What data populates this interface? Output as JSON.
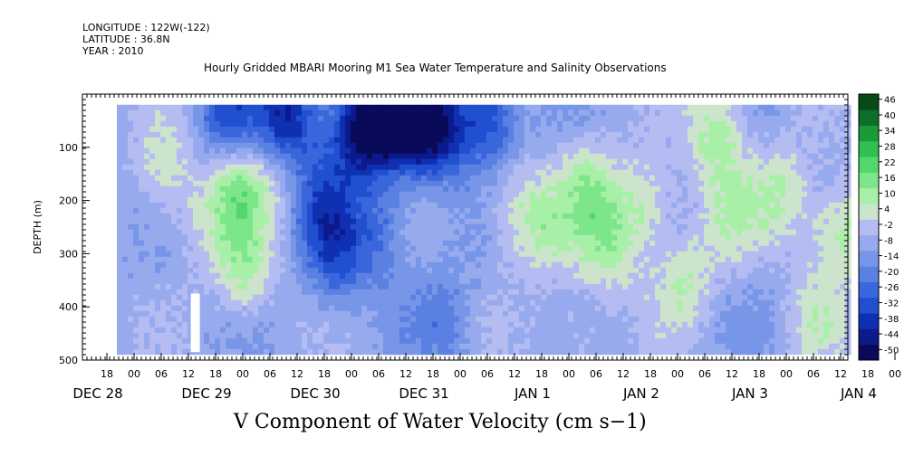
{
  "header": {
    "longitude": "LONGITUDE : 122W(-122)",
    "latitude": "LATITUDE : 36.8N",
    "year": "YEAR : 2010"
  },
  "colors": {
    "page_background": "#ffffff",
    "missing_data": "#ffffff",
    "axis": "#000000"
  },
  "chart_data": {
    "type": "heatmap",
    "title": "Hourly Gridded MBARI Mooring M1 Sea Water Temperature and Salinity Observations",
    "xlabel": "V Component of Water Velocity (cm s−1)",
    "ylabel": "DEPTH (m)",
    "ylim": [
      500,
      0
    ],
    "y_inverted": true,
    "yticks": [
      100,
      200,
      300,
      400,
      500
    ],
    "x_hour_ticks": [
      "18",
      "00",
      "06",
      "12",
      "18",
      "00",
      "06",
      "12",
      "18",
      "00",
      "06",
      "12",
      "18",
      "00",
      "06",
      "12",
      "18",
      "00",
      "06",
      "12",
      "18",
      "00",
      "06",
      "12",
      "18",
      "00",
      "06",
      "12",
      "18",
      "00",
      "06",
      "12",
      "18",
      "00",
      "06",
      "12",
      "12"
    ],
    "x_day_labels": [
      "DEC 28",
      "DEC 29",
      "DEC 30",
      "DEC 31",
      "JAN  1",
      "JAN  2",
      "JAN  3",
      "JAN  4"
    ],
    "data_extent": {
      "depth_top_m": 20,
      "depth_bottom_m": 485
    },
    "colorbar": {
      "levels": [
        -50,
        -44,
        -38,
        -32,
        -26,
        -20,
        -14,
        -8,
        -2,
        4,
        10,
        16,
        22,
        28,
        34,
        40,
        46
      ],
      "tick_labels": [
        "-50",
        "-44",
        "-38",
        "-32",
        "-26",
        "-20",
        "-14",
        "-8",
        "-2",
        "4",
        "10",
        "16",
        "22",
        "28",
        "34",
        "40",
        "46"
      ],
      "colors": [
        "#0a0a5a",
        "#0c1a8c",
        "#1030b4",
        "#2050d0",
        "#3a66dc",
        "#5a80e2",
        "#7896e8",
        "#98aaee",
        "#b4bcf2",
        "#cce4cc",
        "#a8f0a8",
        "#7ee68a",
        "#52d86a",
        "#30c050",
        "#1c9a3a",
        "#0e7028",
        "#064a18"
      ]
    },
    "field_description": "V velocity (cm/s) vs time (hourly) and depth; values mostly between -30 and +25",
    "blobs": [
      {
        "day": 1.0,
        "depth": 30,
        "value": -22
      },
      {
        "day": 1.55,
        "depth": 40,
        "value": -34
      },
      {
        "day": 2.2,
        "depth": 60,
        "value": -38
      },
      {
        "day": 2.55,
        "depth": 35,
        "value": -44
      },
      {
        "day": 2.9,
        "depth": 60,
        "value": -38
      },
      {
        "day": 3.4,
        "depth": 40,
        "value": -26
      },
      {
        "day": 2.0,
        "depth": 300,
        "value": -20
      },
      {
        "day": 1.85,
        "depth": 200,
        "value": -18
      },
      {
        "day": 2.4,
        "depth": 250,
        "value": -14
      },
      {
        "day": 0.4,
        "depth": 140,
        "value": 14
      },
      {
        "day": 0.75,
        "depth": 230,
        "value": 8
      },
      {
        "day": 1.1,
        "depth": 170,
        "value": 20
      },
      {
        "day": 1.15,
        "depth": 330,
        "value": 18
      },
      {
        "day": 1.5,
        "depth": 150,
        "value": 8
      },
      {
        "day": 3.6,
        "depth": 200,
        "value": 12
      },
      {
        "day": 3.9,
        "depth": 250,
        "value": 14
      },
      {
        "day": 4.3,
        "depth": 160,
        "value": 16
      },
      {
        "day": 4.5,
        "depth": 280,
        "value": 18
      },
      {
        "day": 4.85,
        "depth": 200,
        "value": 16
      },
      {
        "day": 5.2,
        "depth": 350,
        "value": 14
      },
      {
        "day": 5.5,
        "depth": 70,
        "value": 20
      },
      {
        "day": 5.6,
        "depth": 230,
        "value": 12
      },
      {
        "day": 6.1,
        "depth": 180,
        "value": 16
      },
      {
        "day": 6.6,
        "depth": 260,
        "value": 18
      },
      {
        "day": 7.0,
        "depth": 190,
        "value": 14
      },
      {
        "day": 6.4,
        "depth": 420,
        "value": 10
      },
      {
        "day": 4.2,
        "depth": 450,
        "value": 8
      },
      {
        "day": 3.0,
        "depth": 420,
        "value": -10
      },
      {
        "day": 7.3,
        "depth": 350,
        "value": -8
      }
    ]
  }
}
